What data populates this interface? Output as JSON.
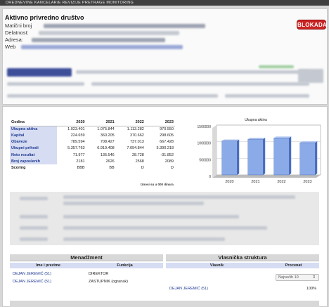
{
  "topnav": {
    "text": "DREDNEVINE   KANCELAR/E REVIZIJE   PRETRAGE   MONITORING"
  },
  "company": {
    "title": "Aktivno privredno društvo",
    "labels": [
      "Matični broj",
      "Delatnost:",
      "Adresa:",
      "Web"
    ],
    "badge": "BLOKADA"
  },
  "financials": {
    "header": [
      "Godina",
      "2020",
      "2021",
      "2022",
      "2023"
    ],
    "rows": [
      {
        "label": "Ukupna aktiva",
        "values": [
          "1.023.401",
          "1.075.844",
          "1.113.282",
          "970.550"
        ]
      },
      {
        "label": "Kapital",
        "values": [
          "224.659",
          "360.205",
          "370.662",
          "298.605"
        ]
      },
      {
        "label": "Obaveze",
        "values": [
          "789.594",
          "708.427",
          "737.013",
          "667.428"
        ]
      },
      {
        "label": "Ukupni prihodi",
        "values": [
          "5.357.763",
          "6.919.408",
          "7.094.844",
          "5.390.218"
        ]
      },
      {
        "label": "Neto rezultat",
        "values": [
          "71.977",
          "135.546",
          "28.728",
          "-31.852"
        ]
      },
      {
        "label": "Broj zaposlenih",
        "values": [
          "2181",
          "2626",
          "2568",
          "2089"
        ]
      },
      {
        "label": "Scoring",
        "values": [
          "BBB",
          "BB",
          "D",
          "D"
        ]
      }
    ],
    "note": "Iznosi su u 000 dinara"
  },
  "chart_data": {
    "type": "bar",
    "title": "Ukupna aktiva",
    "categories": [
      "2020",
      "2021",
      "2022",
      "2023"
    ],
    "values": [
      1023401,
      1075844,
      1113282,
      970550
    ],
    "yticks": [
      "0",
      "500000",
      "1000000",
      "1500000"
    ],
    "ylim": [
      0,
      1500000
    ],
    "color": "#8aaae8"
  },
  "management": {
    "title": "Menadžment",
    "cols": [
      "Ime i prezime",
      "Funkcija"
    ],
    "rows": [
      {
        "name": "DEJAN JEREMIĆ (51)",
        "role": "DIREKTOR"
      },
      {
        "name": "DEJAN JEREMIĆ (51)",
        "role": "ZASTUPNIK (ogranak)"
      }
    ]
  },
  "ownership": {
    "title": "Vlasnička struktura",
    "cols": [
      "Vlasnik",
      "Procenat"
    ],
    "select_value": "Najvećih 10",
    "rows": [
      {
        "name": "DEJAN JEREMIĆ (51)",
        "pct": "100%"
      }
    ]
  }
}
